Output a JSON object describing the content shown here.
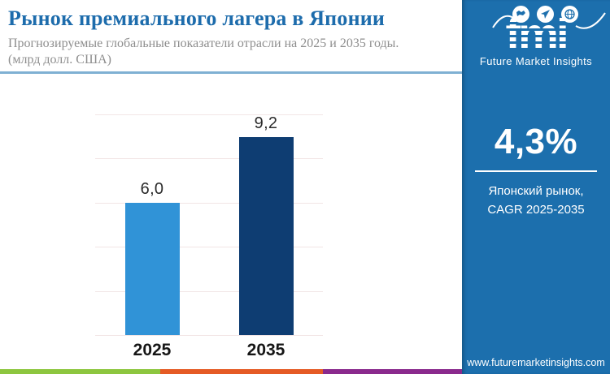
{
  "header": {
    "title": "Рынок премиального лагера в Японии",
    "subtitle_line1": "Прогнозируемые глобальные показатели отрасли на 2025 и 2035 годы.",
    "subtitle_line2": "(млрд долл. США)"
  },
  "chart_data": {
    "type": "bar",
    "title": "Рынок премиального лагера в Японии",
    "subtitle": "Прогнозируемые глобальные показатели отрасли на 2025 и 2035 годы. (млрд долл. США)",
    "categories": [
      "2025",
      "2035"
    ],
    "values": [
      6.0,
      9.2
    ],
    "value_labels": [
      "6,0",
      "9,2"
    ],
    "xlabel": "",
    "ylabel": "млрд долл. США",
    "ylim": [
      0,
      10
    ],
    "gridline_values": [
      0,
      2,
      4,
      6,
      8,
      10
    ],
    "grid": "horizontal-only",
    "legend": "none",
    "bar_colors": [
      "#3093d7",
      "#0e3d72"
    ]
  },
  "sidebar": {
    "logo": {
      "text": "fmi",
      "subtext": "Future Market Insights",
      "icons": [
        "map-icon",
        "plane-icon",
        "globe-icon"
      ]
    },
    "stat": {
      "value": "4,3%",
      "caption_line1": "Японский рынок,",
      "caption_line2": "CAGR 2025-2035"
    },
    "website": "www.futuremarketinsights.com"
  },
  "footer": {
    "stripe_colors": [
      "#8dc63f",
      "#e55b25",
      "#8a2a8d"
    ]
  },
  "colors": {
    "title_blue": "#1d6cac",
    "subtitle_gray": "#8e8e8e",
    "divider_light_blue": "#7fb0d3",
    "panel_blue": "#1c6fad",
    "bar_2025": "#3093d7",
    "bar_2035": "#0e3d72",
    "gridline": "#f2e6e6"
  }
}
